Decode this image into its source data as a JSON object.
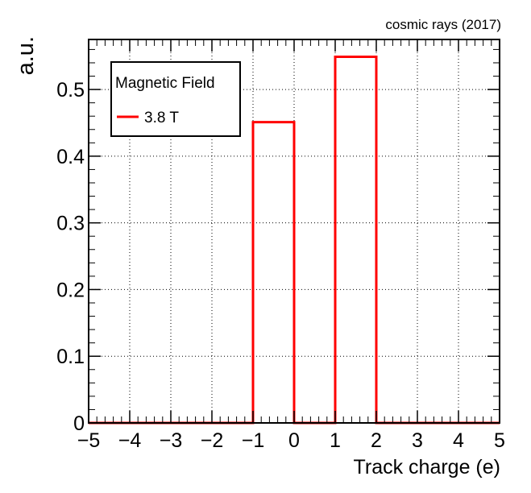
{
  "chart_data": {
    "type": "bar",
    "title": "cosmic rays (2017)",
    "xlabel": "Track charge (e)",
    "ylabel": "a.u.",
    "xlim": [
      -5,
      5
    ],
    "ylim": [
      0,
      0.575
    ],
    "x_ticks": [
      "−5",
      "−4",
      "−3",
      "−2",
      "−1",
      "0",
      "1",
      "2",
      "3",
      "4",
      "5"
    ],
    "y_ticks": [
      "0",
      "0.1",
      "0.2",
      "0.3",
      "0.4",
      "0.5"
    ],
    "grid": true,
    "legend_position": "top-left",
    "legend_header": "Magnetic Field",
    "series": [
      {
        "name": "3.8 T",
        "color": "#ff0000",
        "bin_edges": [
          -5,
          -4,
          -3,
          -2,
          -1,
          0,
          1,
          2,
          3,
          4,
          5
        ],
        "values": [
          0,
          0,
          0,
          0,
          0.451,
          0,
          0.549,
          0,
          0,
          0
        ]
      }
    ]
  }
}
